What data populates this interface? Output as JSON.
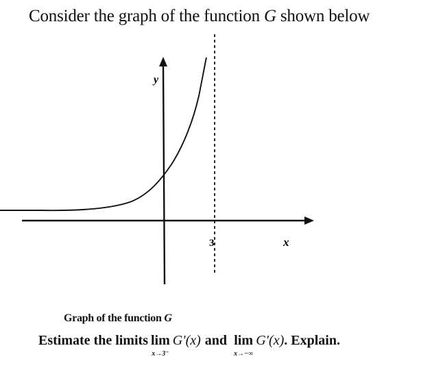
{
  "intro": {
    "before": "Consider the graph of the function",
    "var": "G",
    "after": "shown below"
  },
  "graph": {
    "y_label": "y",
    "x_label": "x",
    "asymptote_label": "3"
  },
  "caption": {
    "before": "Graph of the function",
    "var": "G"
  },
  "question": {
    "lead": "Estimate the limits",
    "lim1_word": "lim",
    "lim1_sub": "x→3⁻",
    "lim1_expr": "G′(x)",
    "connector": "and",
    "lim2_word": "lim",
    "lim2_sub": "x→−∞",
    "lim2_expr": "G′(x)",
    "tail": ". Explain."
  }
}
